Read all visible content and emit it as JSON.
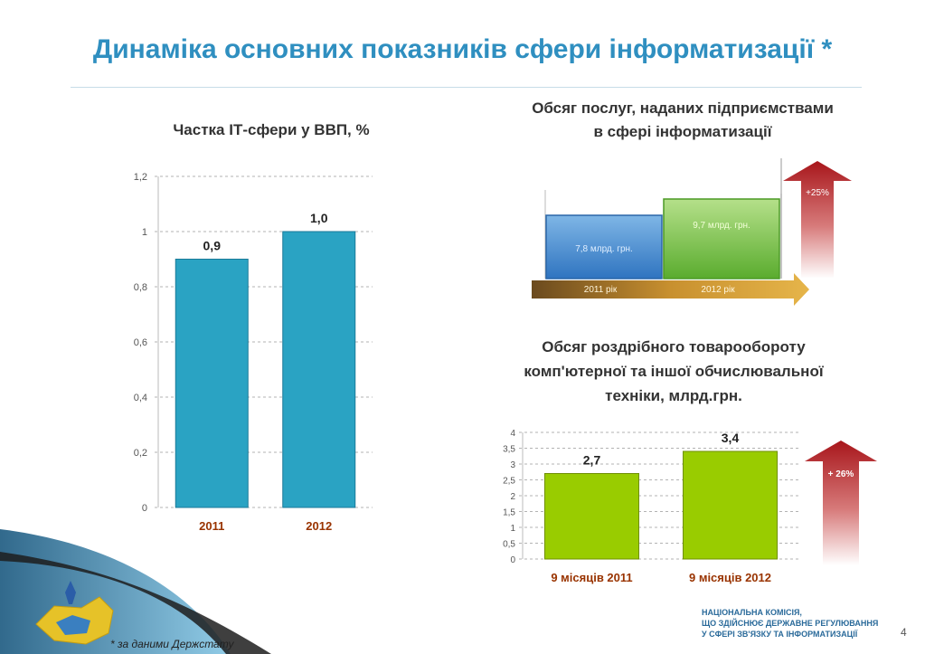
{
  "slide": {
    "title": "Динаміка основних показників сфери інформатизації *",
    "footer_org": [
      "НАЦІОНАЛЬНА КОМІСІЯ,",
      "ЩО ЗДІЙСНЮЄ ДЕРЖАВНЕ РЕГУЛЮВАННЯ",
      "У СФЕРІ ЗВ'ЯЗКУ ТА ІНФОРМАТИЗАЦІЇ"
    ],
    "page_number": "4",
    "source_note": "* за даними Держстату",
    "colors": {
      "title": "#2f8fc0",
      "bar_blue": "#2aa3c3",
      "bar_green": "#99cc00",
      "arrow_red": "#b2282a",
      "category": "#993300"
    }
  },
  "chart_data": [
    {
      "id": "it-share",
      "type": "bar",
      "title": "Частка ІТ-сфери у ВВП, %",
      "categories": [
        "2011",
        "2012"
      ],
      "values": [
        0.9,
        1.0
      ],
      "data_labels": [
        "0,9",
        "1,0"
      ],
      "y_ticks": [
        "0",
        "0,2",
        "0,4",
        "0,6",
        "0,8",
        "1",
        "1,2"
      ],
      "ylim": [
        0,
        1.2
      ],
      "grid": true
    },
    {
      "id": "services-volume",
      "type": "bar",
      "title": "Обсяг послуг, наданих підприємствами в сфері інформатизації",
      "title_lines": [
        "Обсяг послуг, наданих підприємствами",
        "в сфері інформатизації"
      ],
      "categories": [
        "2011 рік",
        "2012 рік"
      ],
      "values": [
        7.8,
        9.7
      ],
      "data_labels": [
        "7,8 млрд. грн.",
        "9,7 млрд. грн."
      ],
      "growth_label": "+25%"
    },
    {
      "id": "retail-turnover",
      "type": "bar",
      "title": "Обсяг роздрібного товарообороту комп'ютерної та іншої обчислювальної техніки, млрд.грн.",
      "title_lines": [
        "Обсяг роздрібного товарообороту",
        "комп'ютерної та іншої обчислювальної",
        "техніки, млрд.грн."
      ],
      "categories": [
        "9 місяців 2011",
        "9 місяців 2012"
      ],
      "values": [
        2.7,
        3.4
      ],
      "data_labels": [
        "2,7",
        "3,4"
      ],
      "y_ticks": [
        "0",
        "0,5",
        "1",
        "1,5",
        "2",
        "2,5",
        "3",
        "3,5",
        "4"
      ],
      "ylim": [
        0,
        4
      ],
      "grid": true,
      "growth_label": "+ 26%"
    }
  ]
}
